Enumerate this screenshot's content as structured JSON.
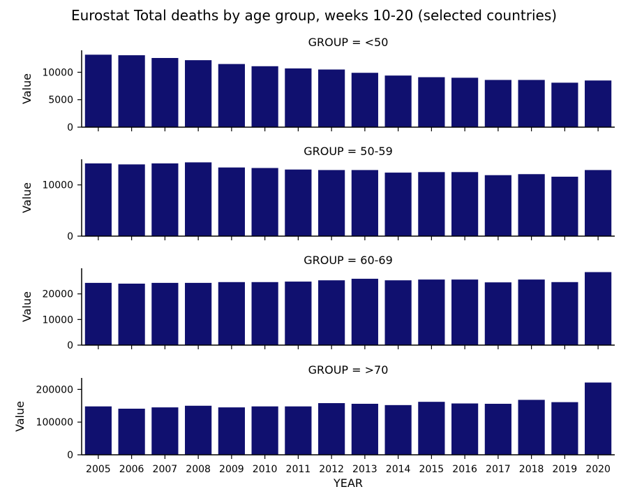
{
  "chart_data": {
    "type": "bar",
    "title": "Eurostat Total deaths by age group, weeks 10-20 (selected countries)",
    "xlabel": "YEAR",
    "ylabel": "Value",
    "bar_color": "#10106f",
    "categories": [
      "2005",
      "2006",
      "2007",
      "2008",
      "2009",
      "2010",
      "2011",
      "2012",
      "2013",
      "2014",
      "2015",
      "2016",
      "2017",
      "2018",
      "2019",
      "2020"
    ],
    "panels": [
      {
        "title": "GROUP = <50",
        "ylim": [
          0,
          14000
        ],
        "yticks": [
          0,
          5000,
          10000
        ],
        "ytick_labels": [
          "0",
          "5000",
          "10000"
        ],
        "values": [
          13200,
          13100,
          12600,
          12200,
          11500,
          11100,
          10700,
          10500,
          9900,
          9400,
          9100,
          9000,
          8600,
          8600,
          8100,
          8500
        ]
      },
      {
        "title": "GROUP = 50-59",
        "ylim": [
          0,
          15000
        ],
        "yticks": [
          0,
          10000
        ],
        "ytick_labels": [
          "0",
          "10000"
        ],
        "values": [
          14200,
          14000,
          14200,
          14400,
          13400,
          13300,
          13000,
          12900,
          12900,
          12400,
          12500,
          12500,
          11900,
          12100,
          11600,
          12900
        ]
      },
      {
        "title": "GROUP = 60-69",
        "ylim": [
          0,
          30000
        ],
        "yticks": [
          0,
          10000,
          20000
        ],
        "ytick_labels": [
          "0",
          "10000",
          "20000"
        ],
        "values": [
          24300,
          24000,
          24300,
          24300,
          24600,
          24600,
          24800,
          25300,
          25900,
          25300,
          25600,
          25600,
          24500,
          25600,
          24600,
          28500
        ]
      },
      {
        "title": "GROUP = >70",
        "ylim": [
          0,
          235000
        ],
        "yticks": [
          0,
          100000,
          200000
        ],
        "ytick_labels": [
          "0",
          "100000",
          "200000"
        ],
        "values": [
          148000,
          141000,
          145000,
          150000,
          145000,
          148000,
          148000,
          158000,
          156000,
          152000,
          162000,
          157000,
          156000,
          168000,
          161000,
          221000
        ]
      }
    ]
  }
}
